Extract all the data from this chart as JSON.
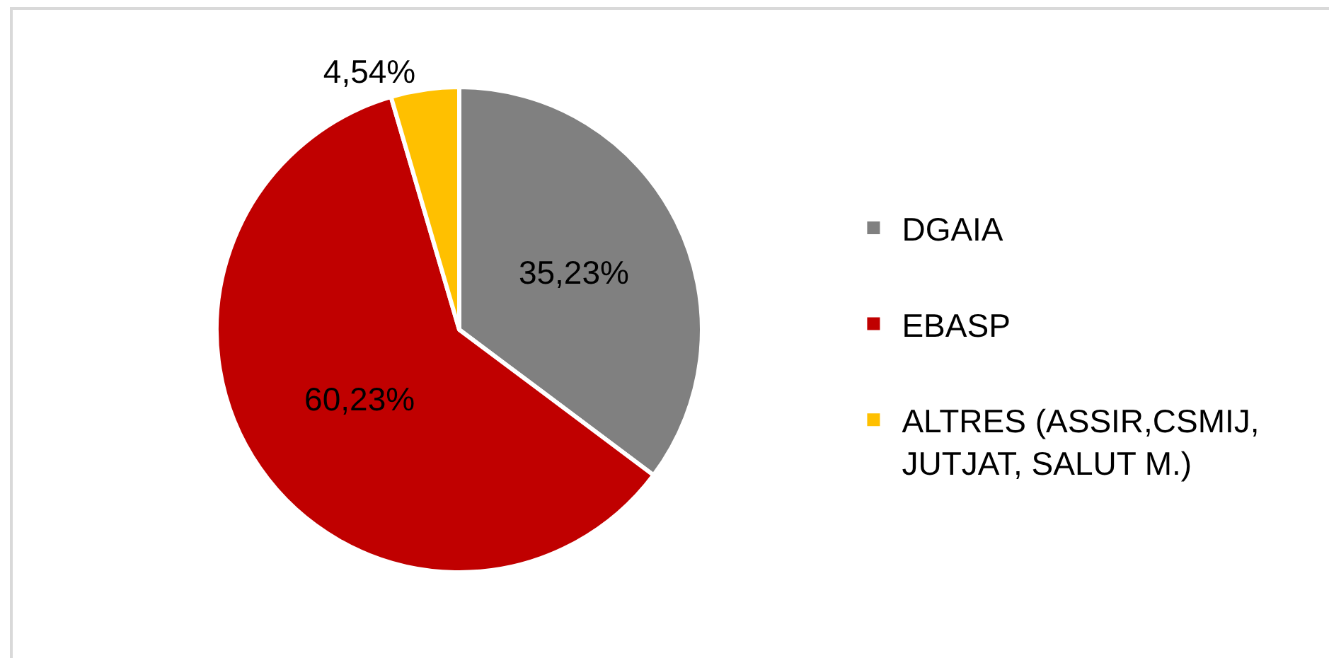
{
  "chart_data": {
    "type": "pie",
    "categories": [
      "DGAIA",
      "EBASP",
      "ALTRES (ASSIR,CSMIJ, JUTJAT, SALUT M.)"
    ],
    "values": [
      35.23,
      60.23,
      4.54
    ],
    "colors": [
      "#808080",
      "#c00000",
      "#ffc000"
    ],
    "value_labels": [
      "35,23%",
      "60,23%",
      "4,54%"
    ],
    "legend": "right"
  }
}
